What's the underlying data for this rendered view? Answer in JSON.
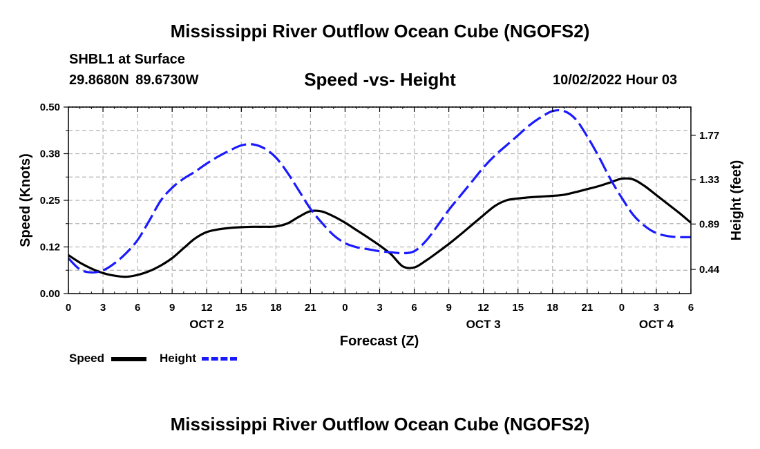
{
  "header": {
    "main_title": "Mississippi River Outflow Ocean Cube (NGOFS2)",
    "station": "SHBL1 at Surface",
    "coordinates": "29.8680N  89.6730W",
    "subtitle": "Speed -vs- Height",
    "datetime": "10/02/2022 Hour 03"
  },
  "footer": {
    "title": "Mississippi River Outflow Ocean Cube (NGOFS2)"
  },
  "legend": {
    "speed_label": "Speed",
    "height_label": "Height"
  },
  "colors": {
    "speed": "#000000",
    "height": "#1a1aff",
    "grid": "#b4b4b4"
  },
  "chart_data": {
    "type": "line",
    "title": "Speed -vs- Height",
    "xlabel": "Forecast (Z)",
    "ylabel": "Speed (Knots)",
    "y2label": "Height (feet)",
    "xlim": [
      0,
      54
    ],
    "ylim": [
      0,
      0.5
    ],
    "y2lim": [
      0.2,
      2.05
    ],
    "grid": true,
    "x_ticks": [
      0,
      3,
      6,
      9,
      12,
      15,
      18,
      21,
      24,
      27,
      30,
      33,
      36,
      39,
      42,
      45,
      48,
      51,
      54
    ],
    "x_tick_labels": [
      "0",
      "3",
      "6",
      "9",
      "12",
      "15",
      "18",
      "21",
      "0",
      "3",
      "6",
      "9",
      "12",
      "15",
      "18",
      "21",
      "0",
      "3",
      "6"
    ],
    "date_labels": [
      {
        "x": 12,
        "label": "OCT 2"
      },
      {
        "x": 36,
        "label": "OCT 3"
      },
      {
        "x": 51,
        "label": "OCT 4"
      }
    ],
    "y_ticks": [
      0.0,
      0.125,
      0.25,
      0.375,
      0.5
    ],
    "y_tick_labels": [
      "0.00",
      "0.12",
      "0.25",
      "0.38",
      "0.50"
    ],
    "y2_ticks": [
      0.44,
      0.89,
      1.33,
      1.77
    ],
    "y2_tick_labels": [
      "0.44",
      "0.89",
      "1.33",
      "1.77"
    ],
    "series": [
      {
        "name": "Speed",
        "axis": "left",
        "style": "solid",
        "x": [
          0,
          1,
          2,
          3,
          4,
          5,
          6,
          7,
          8,
          9,
          10,
          11,
          12,
          13,
          14,
          15,
          16,
          17,
          18,
          19,
          20,
          21,
          22,
          23,
          24,
          25,
          26,
          27,
          28,
          29,
          30,
          31,
          32,
          33,
          34,
          35,
          36,
          37,
          38,
          39,
          40,
          41,
          42,
          43,
          44,
          45,
          46,
          47,
          48,
          49,
          50,
          51,
          52,
          53,
          54
        ],
        "values": [
          0.103,
          0.083,
          0.067,
          0.055,
          0.048,
          0.045,
          0.05,
          0.06,
          0.075,
          0.095,
          0.122,
          0.148,
          0.165,
          0.172,
          0.176,
          0.178,
          0.179,
          0.179,
          0.18,
          0.188,
          0.206,
          0.221,
          0.22,
          0.207,
          0.19,
          0.17,
          0.15,
          0.129,
          0.105,
          0.073,
          0.07,
          0.088,
          0.11,
          0.133,
          0.158,
          0.184,
          0.21,
          0.235,
          0.25,
          0.255,
          0.258,
          0.26,
          0.262,
          0.265,
          0.272,
          0.28,
          0.288,
          0.298,
          0.308,
          0.306,
          0.288,
          0.264,
          0.24,
          0.216,
          0.19
        ]
      },
      {
        "name": "Height",
        "axis": "right",
        "style": "dashed",
        "x": [
          0,
          1,
          2,
          3,
          4,
          5,
          6,
          7,
          8,
          9,
          10,
          11,
          12,
          13,
          14,
          15,
          16,
          17,
          18,
          19,
          20,
          21,
          22,
          23,
          24,
          25,
          26,
          27,
          28,
          29,
          30,
          31,
          32,
          33,
          34,
          35,
          36,
          37,
          38,
          39,
          40,
          41,
          42,
          43,
          44,
          45,
          46,
          47,
          48,
          49,
          50,
          51,
          52,
          53,
          54
        ],
        "values": [
          0.55,
          0.44,
          0.41,
          0.43,
          0.5,
          0.6,
          0.73,
          0.92,
          1.12,
          1.25,
          1.34,
          1.41,
          1.49,
          1.56,
          1.62,
          1.67,
          1.68,
          1.64,
          1.55,
          1.4,
          1.22,
          1.04,
          0.9,
          0.78,
          0.7,
          0.66,
          0.64,
          0.62,
          0.61,
          0.6,
          0.62,
          0.72,
          0.87,
          1.03,
          1.17,
          1.31,
          1.45,
          1.57,
          1.67,
          1.77,
          1.87,
          1.95,
          2.01,
          2.01,
          1.93,
          1.76,
          1.56,
          1.34,
          1.15,
          0.98,
          0.87,
          0.8,
          0.77,
          0.76,
          0.76
        ]
      }
    ]
  }
}
